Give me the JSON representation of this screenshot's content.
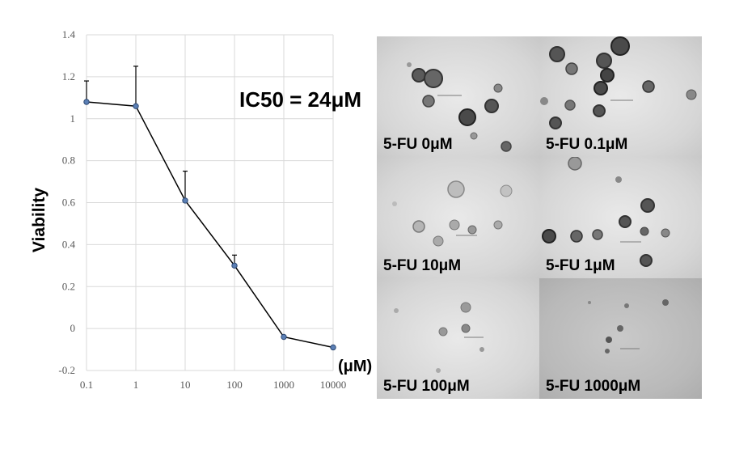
{
  "chart_data": {
    "type": "line",
    "title": "",
    "xlabel": "(μM)",
    "ylabel": "Viability",
    "x_scale": "log",
    "x": [
      0.1,
      1,
      10,
      100,
      1000,
      10000
    ],
    "x_tick_labels": [
      "0.1",
      "1",
      "10",
      "100",
      "1000",
      "10000"
    ],
    "y_ticks": [
      "-0.2",
      "0",
      "0.2",
      "0.4",
      "0.6",
      "0.8",
      "1",
      "1.2",
      "1.4"
    ],
    "ylim": [
      -0.2,
      1.4
    ],
    "grid": true,
    "series": [
      {
        "values": [
          1.08,
          1.06,
          0.61,
          0.3,
          -0.04,
          -0.09
        ],
        "error_upper": [
          1.18,
          1.25,
          0.75,
          0.35,
          null,
          null
        ]
      }
    ],
    "annotation": "IC50 = 24μM",
    "line_color": "#000000",
    "marker_color": "#5b7fb5"
  },
  "panels": [
    {
      "label": "5-FU 0μM"
    },
    {
      "label": "5-FU 0.1μM"
    },
    {
      "label": "5-FU 10μM"
    },
    {
      "label": "5-FU 1μM"
    },
    {
      "label": "5-FU 100μM"
    },
    {
      "label": "5-FU 1000μM"
    }
  ]
}
